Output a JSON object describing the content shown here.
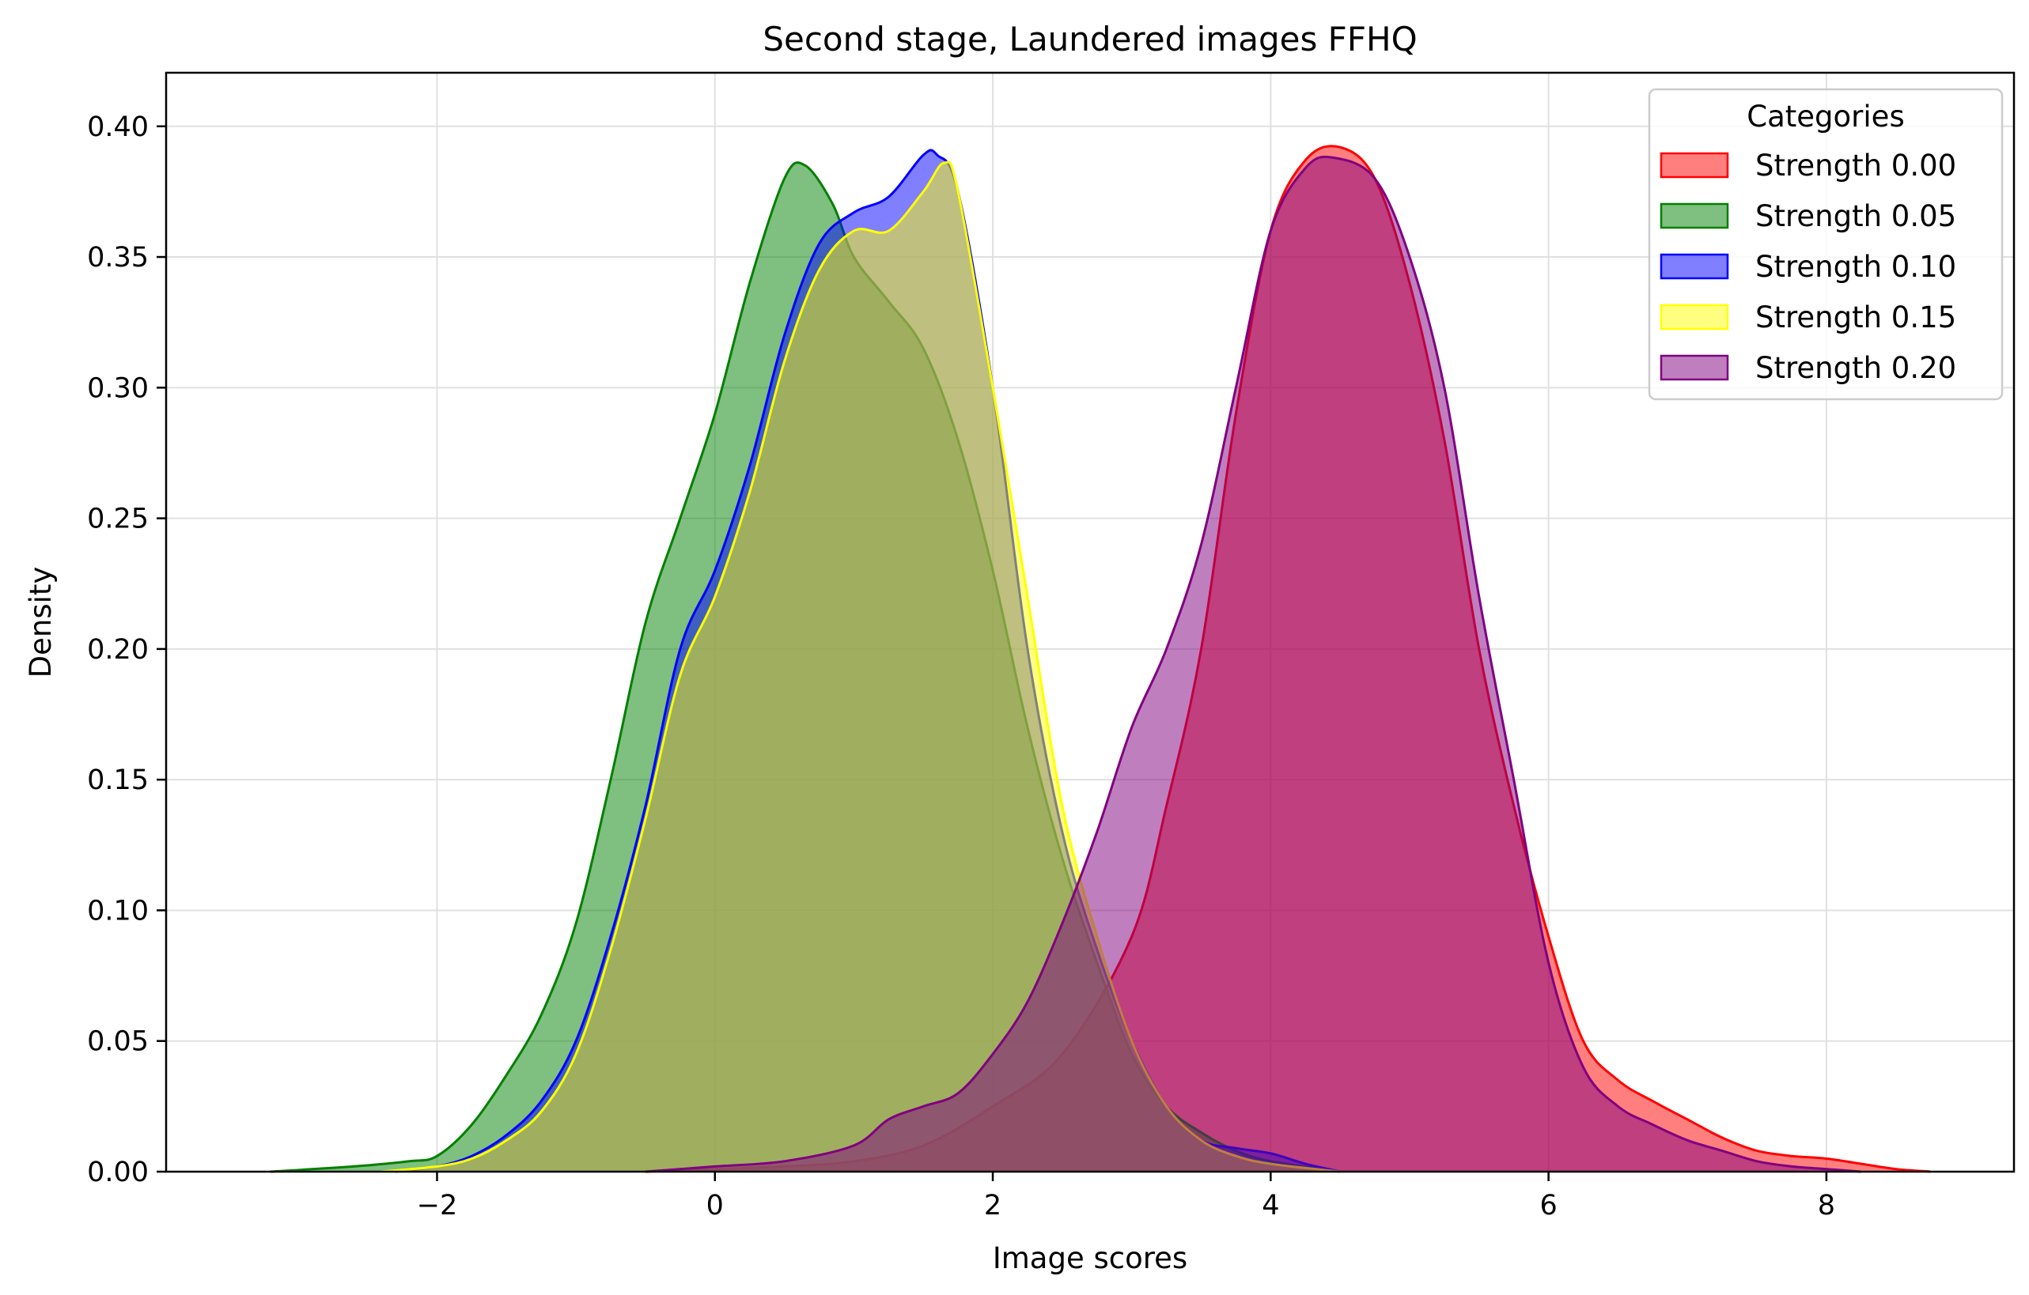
{
  "chart_data": {
    "type": "area",
    "title": "Second stage, Laundered images FFHQ",
    "xlabel": "Image scores",
    "ylabel": "Density",
    "xlim": [
      -3.95,
      9.35
    ],
    "ylim": [
      0,
      0.4205
    ],
    "xticks": [
      -2,
      0,
      2,
      4,
      6,
      8
    ],
    "xtick_labels": [
      "−2",
      "0",
      "2",
      "4",
      "6",
      "8"
    ],
    "yticks": [
      0.0,
      0.05,
      0.1,
      0.15,
      0.2,
      0.25,
      0.3,
      0.35,
      0.4
    ],
    "ytick_labels": [
      "0.00",
      "0.05",
      "0.10",
      "0.15",
      "0.20",
      "0.25",
      "0.30",
      "0.35",
      "0.40"
    ],
    "grid": true,
    "legend": {
      "title": "Categories",
      "placement": "top-right"
    },
    "series": [
      {
        "name": "Strength 0.00",
        "color": "#ff0000",
        "x": [
          -0.5,
          0,
          0.5,
          1,
          1.5,
          2,
          2.5,
          3,
          3.25,
          3.5,
          3.75,
          4,
          4.25,
          4.5,
          4.75,
          5,
          5.25,
          5.5,
          5.75,
          6,
          6.25,
          6.5,
          6.75,
          7,
          7.25,
          7.5,
          7.75,
          8,
          8.25,
          8.5,
          8.75
        ],
        "y": [
          0,
          0.001,
          0.002,
          0.004,
          0.01,
          0.025,
          0.045,
          0.09,
          0.14,
          0.2,
          0.29,
          0.36,
          0.387,
          0.392,
          0.38,
          0.34,
          0.28,
          0.2,
          0.14,
          0.09,
          0.05,
          0.035,
          0.027,
          0.02,
          0.013,
          0.008,
          0.006,
          0.005,
          0.003,
          0.001,
          0
        ]
      },
      {
        "name": "Strength 0.05",
        "color": "#008000",
        "x": [
          -3.2,
          -2.6,
          -2.2,
          -2,
          -1.75,
          -1.5,
          -1.25,
          -1,
          -0.75,
          -0.5,
          -0.25,
          0,
          0.25,
          0.5,
          0.65,
          0.85,
          1,
          1.25,
          1.5,
          1.75,
          2,
          2.25,
          2.5,
          2.75,
          3,
          3.25,
          3.5,
          3.75,
          4,
          4.5
        ],
        "y": [
          0,
          0.002,
          0.004,
          0.006,
          0.018,
          0.037,
          0.06,
          0.095,
          0.15,
          0.21,
          0.25,
          0.29,
          0.34,
          0.38,
          0.385,
          0.37,
          0.35,
          0.333,
          0.315,
          0.28,
          0.23,
          0.17,
          0.12,
          0.08,
          0.045,
          0.025,
          0.015,
          0.008,
          0.004,
          0
        ]
      },
      {
        "name": "Strength 0.10",
        "color": "#0000ff",
        "x": [
          -2.3,
          -2,
          -1.75,
          -1.5,
          -1.25,
          -1,
          -0.75,
          -0.5,
          -0.25,
          0,
          0.25,
          0.5,
          0.75,
          1,
          1.25,
          1.5,
          1.6,
          1.75,
          2,
          2.25,
          2.5,
          2.75,
          3,
          3.25,
          3.5,
          3.75,
          4,
          4.25,
          4.5
        ],
        "y": [
          0,
          0.002,
          0.006,
          0.014,
          0.027,
          0.05,
          0.09,
          0.14,
          0.2,
          0.23,
          0.27,
          0.32,
          0.355,
          0.367,
          0.373,
          0.389,
          0.389,
          0.375,
          0.3,
          0.2,
          0.13,
          0.085,
          0.05,
          0.025,
          0.012,
          0.009,
          0.007,
          0.003,
          0
        ]
      },
      {
        "name": "Strength 0.15",
        "color": "#ffff00",
        "x": [
          -2.4,
          -2,
          -1.75,
          -1.5,
          -1.25,
          -1,
          -0.75,
          -0.5,
          -0.25,
          0,
          0.25,
          0.5,
          0.75,
          1,
          1.25,
          1.5,
          1.65,
          1.75,
          2,
          2.25,
          2.5,
          2.75,
          3,
          3.25,
          3.5,
          3.75,
          4,
          4.5
        ],
        "y": [
          0,
          0.002,
          0.005,
          0.012,
          0.023,
          0.045,
          0.085,
          0.135,
          0.19,
          0.22,
          0.26,
          0.31,
          0.345,
          0.36,
          0.36,
          0.375,
          0.386,
          0.375,
          0.3,
          0.22,
          0.14,
          0.09,
          0.05,
          0.025,
          0.012,
          0.006,
          0.003,
          0
        ]
      },
      {
        "name": "Strength 0.20",
        "color": "#800080",
        "x": [
          -0.5,
          0,
          0.5,
          1,
          1.25,
          1.5,
          1.75,
          2,
          2.25,
          2.5,
          2.75,
          3,
          3.25,
          3.5,
          3.75,
          4,
          4.25,
          4.45,
          4.75,
          5,
          5.25,
          5.5,
          5.75,
          6,
          6.25,
          6.5,
          6.75,
          7,
          7.25,
          7.5,
          7.75,
          8,
          8.25
        ],
        "y": [
          0,
          0.002,
          0.004,
          0.01,
          0.02,
          0.025,
          0.03,
          0.045,
          0.065,
          0.095,
          0.13,
          0.17,
          0.2,
          0.24,
          0.3,
          0.36,
          0.384,
          0.388,
          0.38,
          0.35,
          0.3,
          0.22,
          0.15,
          0.08,
          0.04,
          0.025,
          0.018,
          0.012,
          0.008,
          0.004,
          0.002,
          0.001,
          0
        ]
      }
    ]
  }
}
